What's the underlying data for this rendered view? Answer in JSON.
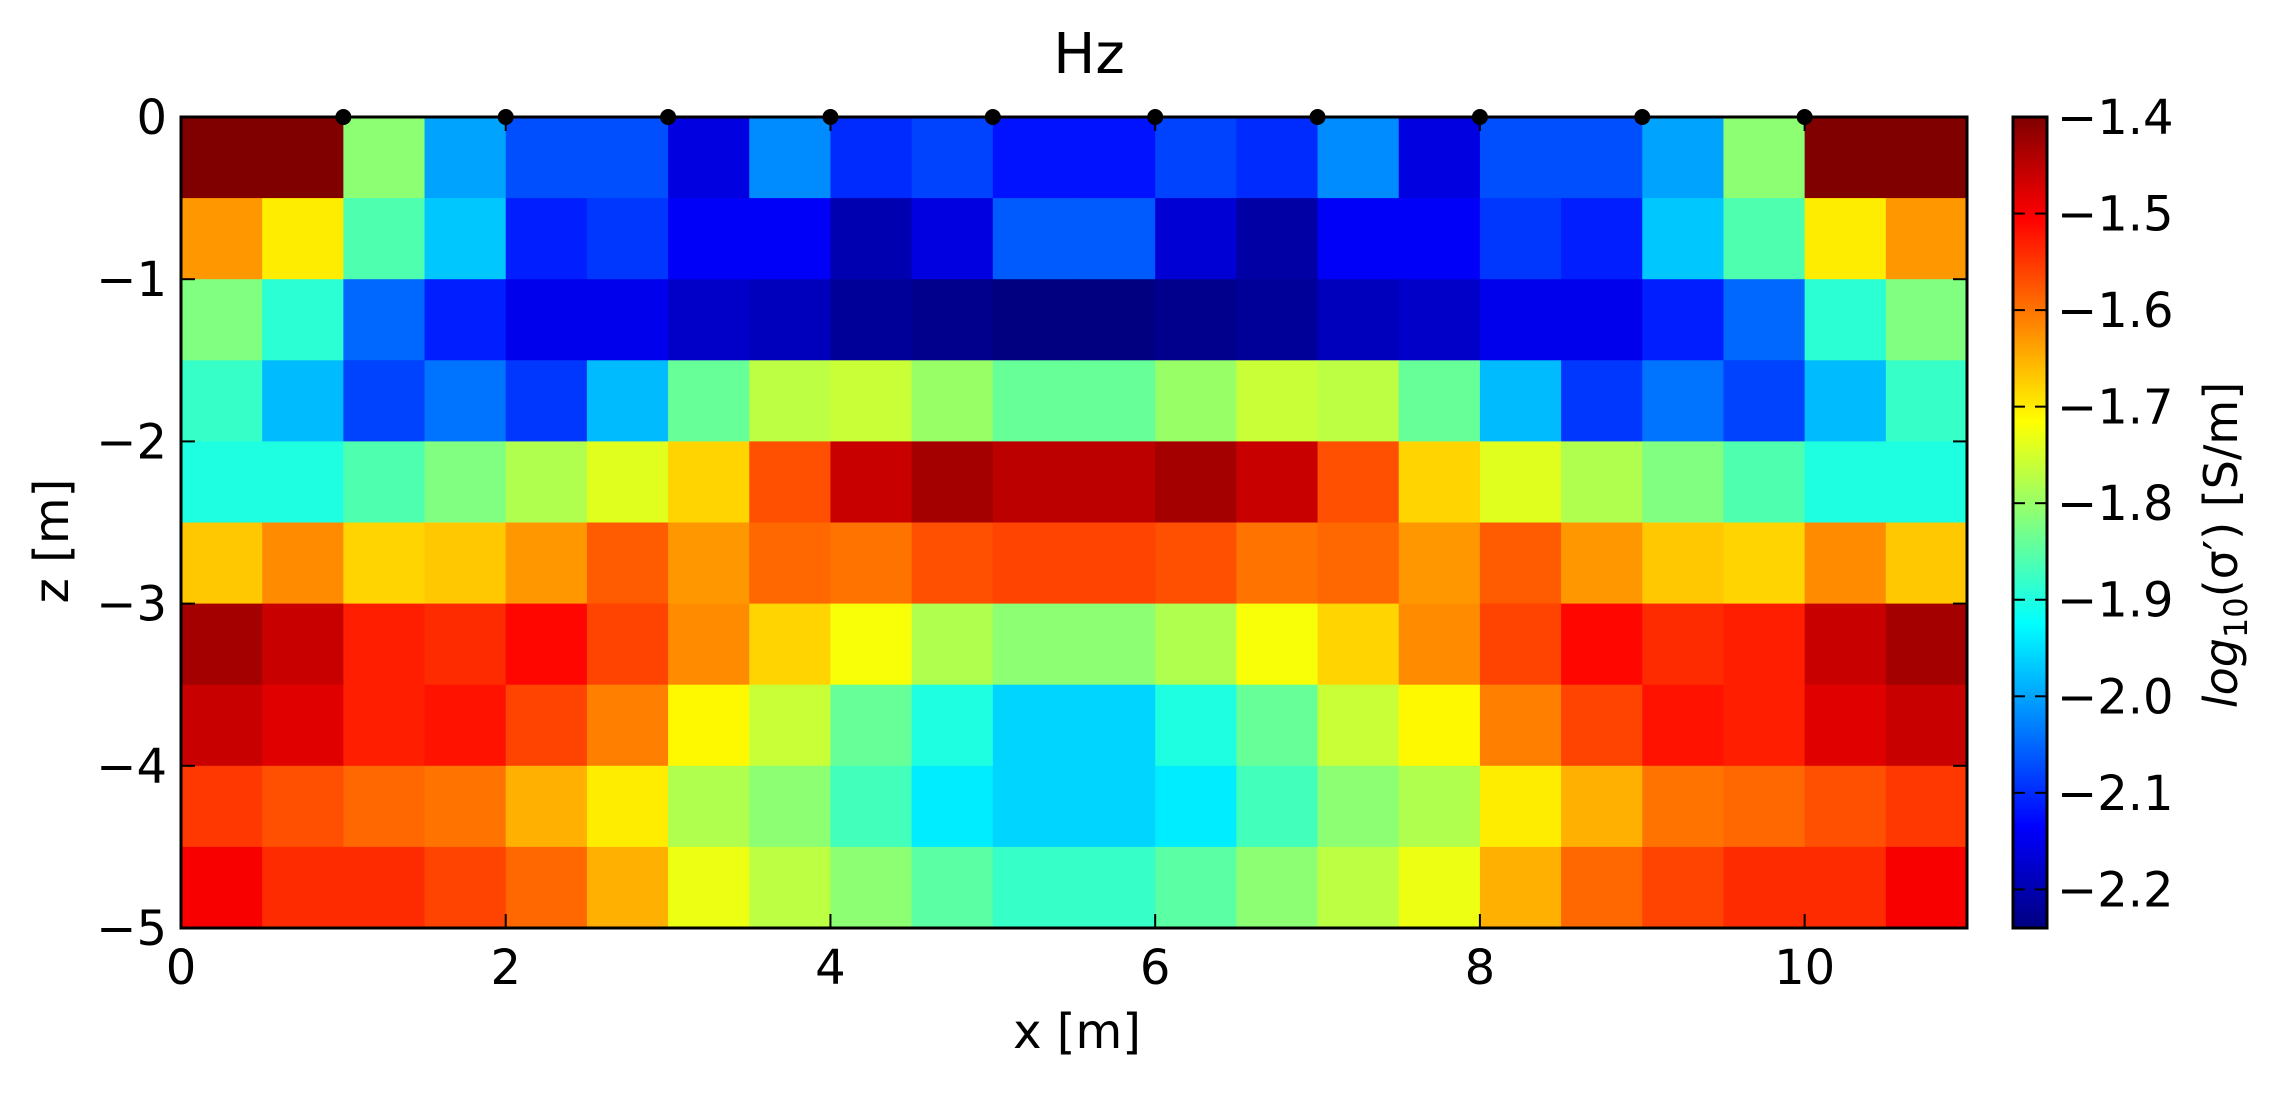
{
  "chart_data": {
    "type": "heatmap",
    "title": "Hz",
    "xlabel": "x [m]",
    "ylabel": "z [m]",
    "xlim": [
      0,
      11
    ],
    "ylim": [
      -5,
      0
    ],
    "x_ticks": [
      0,
      2,
      4,
      6,
      8,
      10
    ],
    "x_tick_labels": [
      "0",
      "2",
      "4",
      "6",
      "8",
      "10"
    ],
    "y_ticks": [
      0,
      -1,
      -2,
      -3,
      -4,
      -5
    ],
    "y_tick_labels": [
      "0",
      "−1",
      "−2",
      "−3",
      "−4",
      "−5"
    ],
    "cell_size": [
      0.5,
      0.5
    ],
    "colormap": "jet",
    "color_range": [
      -2.24,
      -1.4
    ],
    "colorbar": {
      "label_prefix": "log",
      "label_sub": "10",
      "label_arg": "(σ′)",
      "label_units": " [S/m]",
      "ticks": [
        -1.4,
        -1.5,
        -1.6,
        -1.7,
        -1.8,
        -1.9,
        -2.0,
        -2.1,
        -2.2
      ],
      "tick_labels": [
        "−1.4",
        "−1.5",
        "−1.6",
        "−1.7",
        "−1.8",
        "−1.9",
        "−2.0",
        "−2.1",
        "−2.2"
      ]
    },
    "electrode_x": [
      1,
      2,
      3,
      4,
      5,
      6,
      7,
      8,
      9,
      10
    ],
    "electrode_z": 0,
    "values": [
      [
        -1.4,
        -1.4,
        -1.81,
        -2.0,
        -2.07,
        -2.07,
        -2.16,
        -2.02,
        -2.1,
        -2.08,
        -2.12,
        -2.12,
        -2.08,
        -2.1,
        -2.02,
        -2.16,
        -2.07,
        -2.07,
        -2.0,
        -1.81,
        -1.4,
        -1.4
      ],
      [
        -1.63,
        -1.7,
        -1.86,
        -1.97,
        -2.11,
        -2.09,
        -2.14,
        -2.14,
        -2.2,
        -2.16,
        -2.06,
        -2.06,
        -2.17,
        -2.21,
        -2.14,
        -2.14,
        -2.09,
        -2.11,
        -1.97,
        -1.86,
        -1.7,
        -1.63
      ],
      [
        -1.82,
        -1.89,
        -2.05,
        -2.11,
        -2.15,
        -2.15,
        -2.18,
        -2.19,
        -2.22,
        -2.23,
        -2.24,
        -2.24,
        -2.23,
        -2.22,
        -2.19,
        -2.18,
        -2.15,
        -2.15,
        -2.11,
        -2.05,
        -1.89,
        -1.82
      ],
      [
        -1.88,
        -1.98,
        -2.08,
        -2.04,
        -2.09,
        -1.98,
        -1.84,
        -1.77,
        -1.76,
        -1.8,
        -1.84,
        -1.84,
        -1.8,
        -1.76,
        -1.77,
        -1.84,
        -1.98,
        -2.09,
        -2.04,
        -2.08,
        -1.98,
        -1.88
      ],
      [
        -1.9,
        -1.9,
        -1.86,
        -1.82,
        -1.78,
        -1.74,
        -1.68,
        -1.57,
        -1.46,
        -1.43,
        -1.45,
        -1.45,
        -1.43,
        -1.46,
        -1.57,
        -1.68,
        -1.74,
        -1.78,
        -1.82,
        -1.86,
        -1.9,
        -1.9
      ],
      [
        -1.67,
        -1.62,
        -1.68,
        -1.67,
        -1.63,
        -1.58,
        -1.63,
        -1.59,
        -1.6,
        -1.57,
        -1.56,
        -1.56,
        -1.57,
        -1.6,
        -1.59,
        -1.63,
        -1.58,
        -1.63,
        -1.67,
        -1.68,
        -1.62,
        -1.67
      ],
      [
        -1.43,
        -1.46,
        -1.53,
        -1.54,
        -1.51,
        -1.56,
        -1.62,
        -1.68,
        -1.72,
        -1.78,
        -1.81,
        -1.81,
        -1.78,
        -1.72,
        -1.68,
        -1.62,
        -1.56,
        -1.51,
        -1.54,
        -1.53,
        -1.46,
        -1.43
      ],
      [
        -1.46,
        -1.48,
        -1.53,
        -1.52,
        -1.56,
        -1.61,
        -1.71,
        -1.76,
        -1.84,
        -1.9,
        -1.96,
        -1.96,
        -1.9,
        -1.84,
        -1.76,
        -1.71,
        -1.61,
        -1.56,
        -1.52,
        -1.53,
        -1.48,
        -1.46
      ],
      [
        -1.55,
        -1.57,
        -1.59,
        -1.6,
        -1.65,
        -1.7,
        -1.78,
        -1.81,
        -1.87,
        -1.94,
        -1.96,
        -1.96,
        -1.94,
        -1.87,
        -1.81,
        -1.78,
        -1.7,
        -1.65,
        -1.6,
        -1.59,
        -1.57,
        -1.55
      ],
      [
        -1.5,
        -1.54,
        -1.54,
        -1.56,
        -1.59,
        -1.65,
        -1.73,
        -1.77,
        -1.81,
        -1.85,
        -1.88,
        -1.88,
        -1.85,
        -1.81,
        -1.77,
        -1.73,
        -1.65,
        -1.59,
        -1.56,
        -1.54,
        -1.54,
        -1.5
      ]
    ]
  }
}
